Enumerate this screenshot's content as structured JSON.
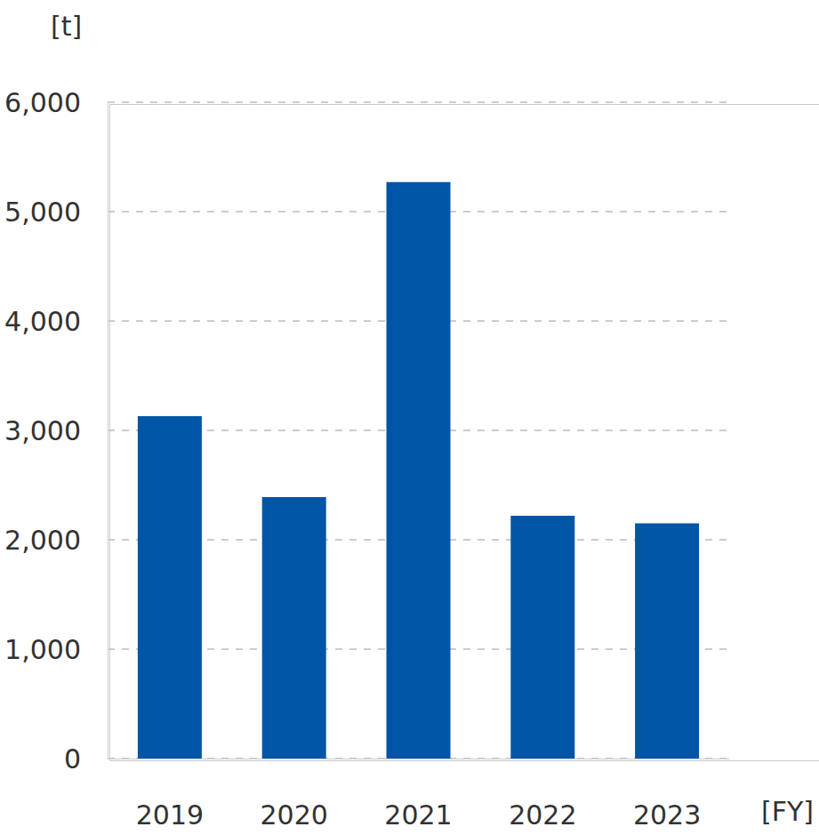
{
  "chart_data": {
    "type": "bar",
    "ylabel": "[t]",
    "xlabel": "[FY]",
    "categories": [
      "2019",
      "2020",
      "2021",
      "2022",
      "2023"
    ],
    "values": [
      3130,
      2390,
      5270,
      2220,
      2150
    ],
    "color": "#0055a6",
    "ylim": [
      0,
      6000
    ],
    "yticks": [
      0,
      {
        "value": 1000,
        "label": "1,000"
      },
      {
        "value": 2000,
        "label": "2,000"
      },
      {
        "value": 3000,
        "label": "3,000"
      },
      {
        "value": 4000,
        "label": "4,000"
      },
      {
        "value": 5000,
        "label": "5,000"
      },
      {
        "value": 6000,
        "label": "6,000"
      }
    ],
    "grid": true
  }
}
